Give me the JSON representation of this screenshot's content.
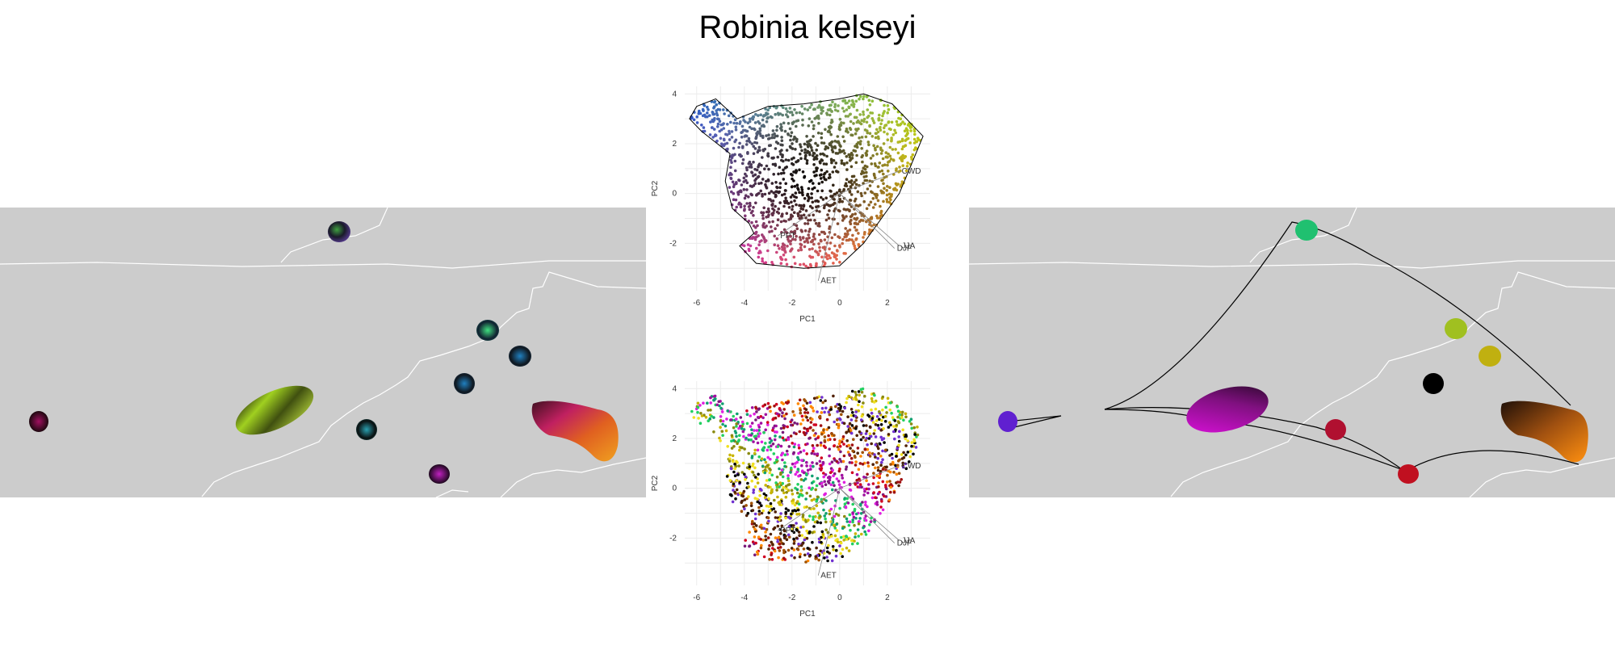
{
  "title": "Robinia kelseyi",
  "chart_data": [
    {
      "type": "scatter",
      "name": "pca-colored-by-position",
      "xlabel": "PC1",
      "ylabel": "PC2",
      "xlim": [
        -6.5,
        3.8
      ],
      "ylim": [
        -3.9,
        4.3
      ],
      "xticks": [
        -6,
        -4,
        -2,
        0,
        2
      ],
      "yticks": [
        -2,
        0,
        2,
        4
      ],
      "grid": true,
      "hull": true,
      "vectors": [
        {
          "label": "CWD",
          "x": 2.5,
          "y": 0.9
        },
        {
          "label": "AET",
          "x": -0.9,
          "y": -3.5
        },
        {
          "label": "PPT",
          "x": -2.6,
          "y": -1.7
        },
        {
          "label": "JJA",
          "x": 2.5,
          "y": -2.1
        },
        {
          "label": "DJF",
          "x": 2.3,
          "y": -2.2
        }
      ]
    },
    {
      "type": "scatter",
      "name": "pca-colored-by-cluster",
      "xlabel": "PC1",
      "ylabel": "PC2",
      "xlim": [
        -6.5,
        3.8
      ],
      "ylim": [
        -3.9,
        4.3
      ],
      "xticks": [
        -6,
        -4,
        -2,
        0,
        2
      ],
      "yticks": [
        -2,
        0,
        2,
        4
      ],
      "grid": true,
      "hull": false,
      "vectors": [
        {
          "label": "CWD",
          "x": 2.5,
          "y": 0.9
        },
        {
          "label": "AET",
          "x": -0.9,
          "y": -3.5
        },
        {
          "label": "PPT",
          "x": -2.6,
          "y": -1.7
        },
        {
          "label": "JJA",
          "x": 2.5,
          "y": -2.1
        },
        {
          "label": "DJF",
          "x": 2.3,
          "y": -2.2
        }
      ],
      "cluster_colors": [
        "#f0e020",
        "#c8b400",
        "#8a8a10",
        "#22d060",
        "#10a070",
        "#e020e0",
        "#a010a0",
        "#7a1a7a",
        "#d00020",
        "#a01010",
        "#ff8800",
        "#a05000",
        "#502000",
        "#7030d0",
        "#000000"
      ]
    }
  ],
  "colors": {
    "map_background": "#cccccc",
    "border_line": "#ffffff",
    "network_line": "#000000"
  }
}
